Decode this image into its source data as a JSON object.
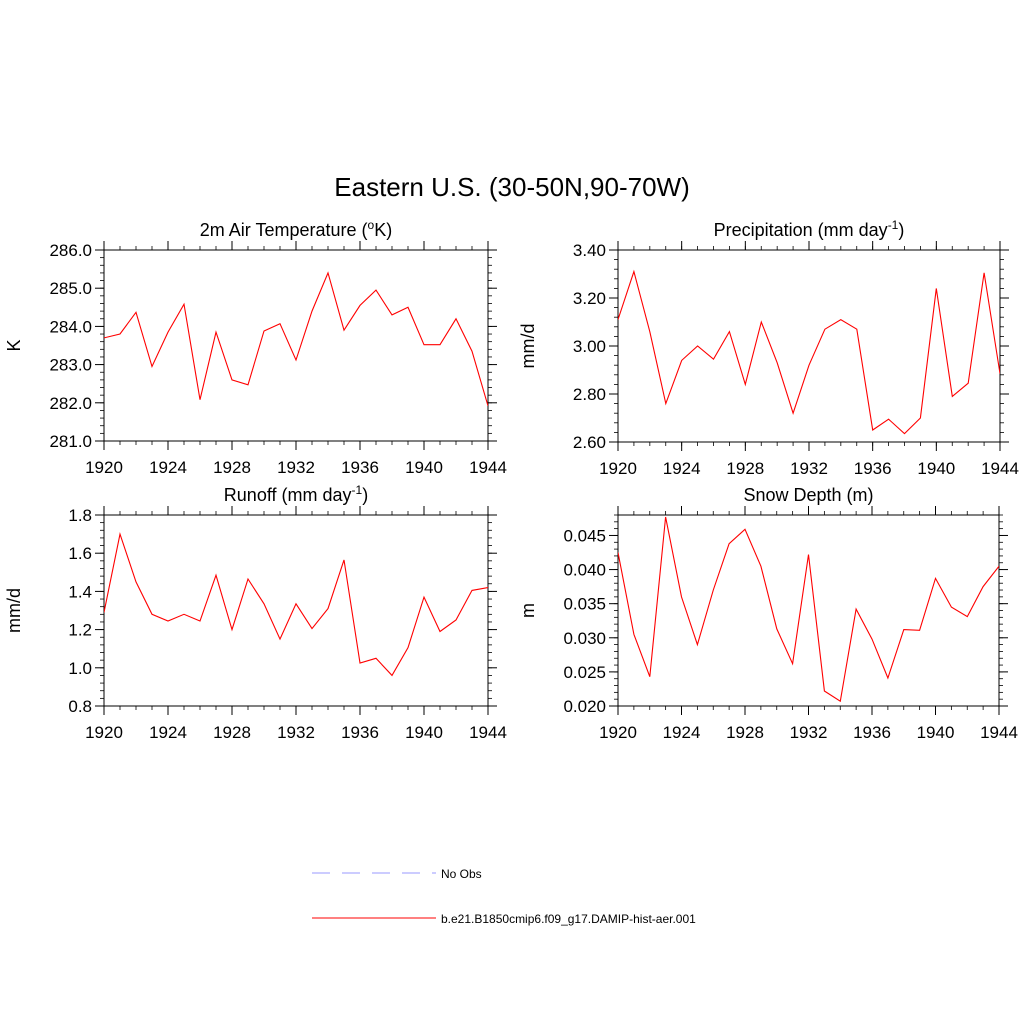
{
  "title": "Eastern U.S. (30-50N,90-70W)",
  "line_color": "#ff0000",
  "obs_color": "#9999ff",
  "legend": {
    "position": "bottom-center",
    "entries": [
      {
        "label": "No Obs",
        "style": "dashed",
        "color": "#9999ff"
      },
      {
        "label": "b.e21.B1850cmip6.f09_g17.DAMIP-hist-aer.001",
        "style": "solid",
        "color": "#ff0000"
      }
    ]
  },
  "chart_data": [
    {
      "type": "line",
      "title": "2m Air Temperature (oK)",
      "title_parts": {
        "before": "2m Air Temperature (",
        "sup": "o",
        "after": "K)"
      },
      "ylabel": "K",
      "xlim": [
        1920,
        1944
      ],
      "ylim": [
        281.0,
        286.0
      ],
      "xticks": [
        1920,
        1924,
        1928,
        1932,
        1936,
        1940,
        1944
      ],
      "xticklabels": [
        "1920",
        "1924",
        "1928",
        "1932",
        "1936",
        "1940",
        "1944"
      ],
      "yticks": [
        281.0,
        282.0,
        283.0,
        284.0,
        285.0,
        286.0
      ],
      "yticklabels": [
        "281.0",
        "282.0",
        "283.0",
        "284.0",
        "285.0",
        "286.0"
      ],
      "yminor": 0.2,
      "x": [
        1920,
        1921,
        1922,
        1923,
        1924,
        1925,
        1926,
        1927,
        1928,
        1929,
        1930,
        1931,
        1932,
        1933,
        1934,
        1935,
        1936,
        1937,
        1938,
        1939,
        1940,
        1941,
        1942,
        1943,
        1944
      ],
      "values": [
        283.7,
        283.8,
        284.37,
        282.95,
        283.85,
        284.58,
        282.08,
        283.85,
        282.6,
        282.47,
        283.88,
        284.07,
        283.12,
        284.4,
        285.4,
        283.9,
        284.55,
        284.95,
        284.3,
        284.5,
        283.52,
        283.52,
        284.2,
        283.35,
        281.92
      ]
    },
    {
      "type": "line",
      "title": "Precipitation (mm day-1)",
      "title_parts": {
        "before": "Precipitation (mm day",
        "sup": "-1",
        "after": ")"
      },
      "ylabel": "mm/d",
      "xlim": [
        1920,
        1944
      ],
      "ylim": [
        2.6,
        3.4
      ],
      "xticks": [
        1920,
        1924,
        1928,
        1932,
        1936,
        1940,
        1944
      ],
      "xticklabels": [
        "1920",
        "1924",
        "1928",
        "1932",
        "1936",
        "1940",
        "1944"
      ],
      "yticks": [
        2.6,
        2.8,
        3.0,
        3.2,
        3.4
      ],
      "yticklabels": [
        "2.60",
        "2.80",
        "3.00",
        "3.20",
        "3.40"
      ],
      "yminor": 0.04,
      "x": [
        1920,
        1921,
        1922,
        1923,
        1924,
        1925,
        1926,
        1927,
        1928,
        1929,
        1930,
        1931,
        1932,
        1933,
        1934,
        1935,
        1936,
        1937,
        1938,
        1939,
        1940,
        1941,
        1942,
        1943,
        1944
      ],
      "values": [
        3.11,
        3.31,
        3.06,
        2.76,
        2.94,
        3.0,
        2.945,
        3.06,
        2.84,
        3.1,
        2.93,
        2.72,
        2.92,
        3.07,
        3.11,
        3.07,
        2.65,
        2.695,
        2.635,
        2.7,
        3.24,
        2.79,
        2.845,
        3.305,
        2.885
      ]
    },
    {
      "type": "line",
      "title": "Runoff (mm day-1)",
      "title_parts": {
        "before": "Runoff (mm day",
        "sup": "-1",
        "after": ")"
      },
      "ylabel": "mm/d",
      "xlim": [
        1920,
        1944
      ],
      "ylim": [
        0.8,
        1.8
      ],
      "xticks": [
        1920,
        1924,
        1928,
        1932,
        1936,
        1940,
        1944
      ],
      "xticklabels": [
        "1920",
        "1924",
        "1928",
        "1932",
        "1936",
        "1940",
        "1944"
      ],
      "yticks": [
        0.8,
        1.0,
        1.2,
        1.4,
        1.6,
        1.8
      ],
      "yticklabels": [
        "0.8",
        "1.0",
        "1.2",
        "1.4",
        "1.6",
        "1.8"
      ],
      "yminor": 0.04,
      "x": [
        1920,
        1921,
        1922,
        1923,
        1924,
        1925,
        1926,
        1927,
        1928,
        1929,
        1930,
        1931,
        1932,
        1933,
        1934,
        1935,
        1936,
        1937,
        1938,
        1939,
        1940,
        1941,
        1942,
        1943,
        1944
      ],
      "values": [
        1.29,
        1.7,
        1.45,
        1.28,
        1.245,
        1.28,
        1.245,
        1.485,
        1.2,
        1.465,
        1.335,
        1.15,
        1.335,
        1.205,
        1.31,
        1.565,
        1.025,
        1.05,
        0.96,
        1.105,
        1.37,
        1.19,
        1.25,
        1.405,
        1.42
      ]
    },
    {
      "type": "line",
      "title": "Snow Depth (m)",
      "title_parts": {
        "before": "Snow Depth (m)",
        "sup": "",
        "after": ""
      },
      "ylabel": "m",
      "xlim": [
        1920,
        1944
      ],
      "ylim": [
        0.02,
        0.048
      ],
      "xticks": [
        1920,
        1924,
        1928,
        1932,
        1936,
        1940,
        1944
      ],
      "xticklabels": [
        "1920",
        "1924",
        "1928",
        "1932",
        "1936",
        "1940",
        "1944"
      ],
      "yticks": [
        0.02,
        0.025,
        0.03,
        0.035,
        0.04,
        0.045
      ],
      "yticklabels": [
        "0.020",
        "0.025",
        "0.030",
        "0.035",
        "0.040",
        "0.045"
      ],
      "yminor": 0.001,
      "x": [
        1920,
        1921,
        1922,
        1923,
        1924,
        1925,
        1926,
        1927,
        1928,
        1929,
        1930,
        1931,
        1932,
        1933,
        1934,
        1935,
        1936,
        1937,
        1938,
        1939,
        1940,
        1941,
        1942,
        1943,
        1944
      ],
      "values": [
        0.0425,
        0.0305,
        0.0243,
        0.0477,
        0.036,
        0.029,
        0.037,
        0.0438,
        0.0459,
        0.0405,
        0.0313,
        0.0262,
        0.0422,
        0.0222,
        0.0207,
        0.0342,
        0.0298,
        0.0241,
        0.0312,
        0.0311,
        0.0387,
        0.0345,
        0.0331,
        0.0375,
        0.0405
      ]
    }
  ]
}
